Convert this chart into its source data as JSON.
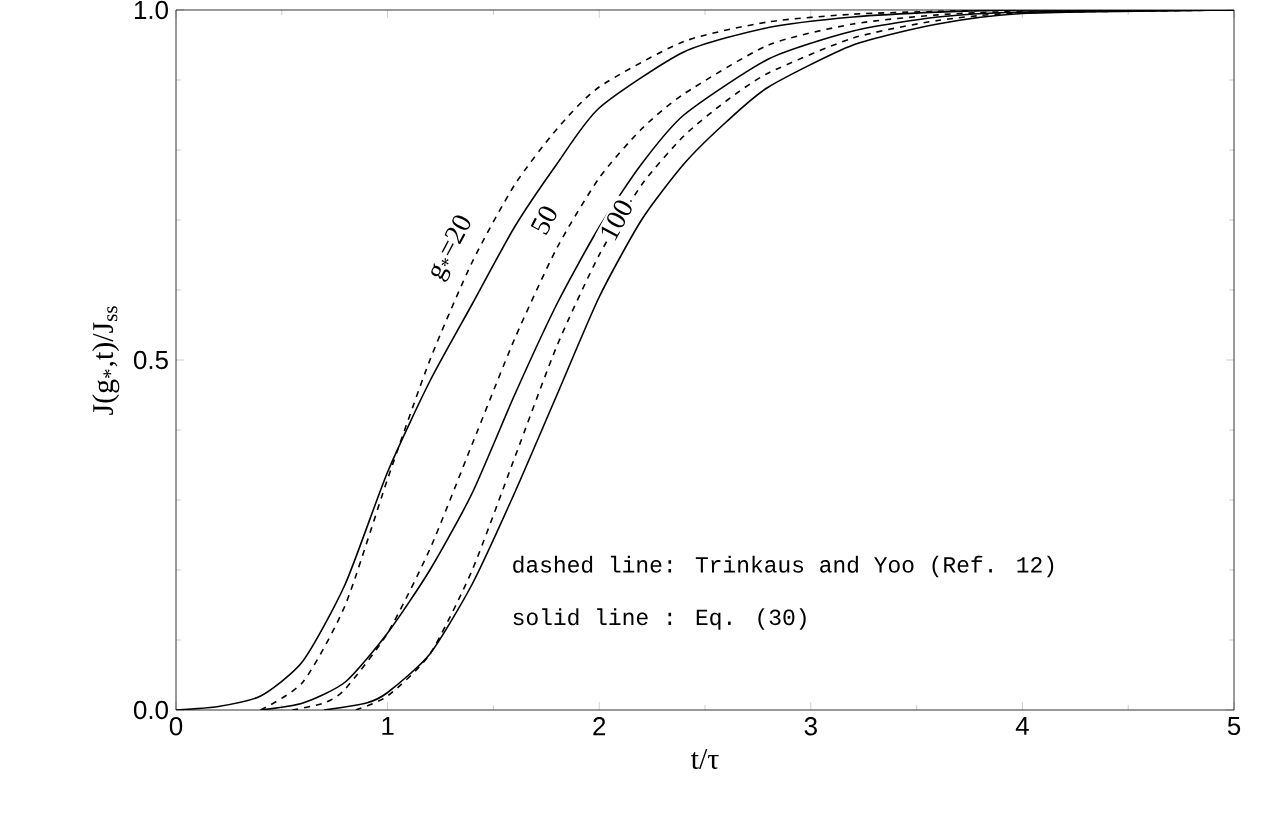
{
  "chart_data": {
    "type": "line",
    "xlabel": "t/τ",
    "ylabel": "J(g$_{*}$,t)/J$_{ss}$",
    "xlim": [
      0,
      5
    ],
    "ylim": [
      0,
      1
    ],
    "xticks": [
      0,
      1,
      2,
      3,
      4,
      5
    ],
    "yticks": [
      {
        "value": 0,
        "label": "0.0"
      },
      0.5,
      {
        "value": 1,
        "label": "1.0"
      }
    ],
    "marker": "none",
    "series": [
      {
        "color": "#000000",
        "line_style": "solid",
        "x": [
          0,
          0.2,
          0.4,
          0.6,
          0.8,
          1.0,
          1.2,
          1.4,
          1.6,
          1.8,
          2.0,
          2.4,
          2.8,
          3.2,
          3.6,
          4.0,
          5.0
        ],
        "values": [
          0,
          0.005,
          0.02,
          0.07,
          0.18,
          0.34,
          0.47,
          0.58,
          0.69,
          0.78,
          0.86,
          0.94,
          0.975,
          0.99,
          0.997,
          1.0,
          1.0
        ]
      },
      {
        "color": "#000000",
        "line_style": "dashed",
        "x": [
          0.4,
          0.6,
          0.8,
          1.0,
          1.2,
          1.4,
          1.6,
          1.8,
          2.0,
          2.4,
          2.8,
          3.2,
          3.6,
          4.0,
          5.0
        ],
        "values": [
          0,
          0.04,
          0.15,
          0.33,
          0.5,
          0.64,
          0.75,
          0.83,
          0.89,
          0.955,
          0.983,
          0.994,
          0.998,
          1.0,
          1.0
        ]
      },
      {
        "color": "#000000",
        "line_style": "solid",
        "x": [
          0.4,
          0.6,
          0.8,
          1.0,
          1.2,
          1.4,
          1.6,
          1.8,
          2.0,
          2.2,
          2.4,
          2.8,
          3.2,
          3.6,
          4.0,
          5.0
        ],
        "values": [
          0,
          0.01,
          0.04,
          0.11,
          0.2,
          0.31,
          0.45,
          0.58,
          0.69,
          0.78,
          0.85,
          0.93,
          0.97,
          0.99,
          0.997,
          1.0
        ]
      },
      {
        "color": "#000000",
        "line_style": "dashed",
        "x": [
          0.55,
          0.7,
          0.8,
          1.0,
          1.2,
          1.4,
          1.6,
          1.8,
          2.0,
          2.2,
          2.4,
          2.8,
          3.2,
          3.6,
          4.0,
          5.0
        ],
        "values": [
          0,
          0.01,
          0.03,
          0.11,
          0.23,
          0.38,
          0.53,
          0.66,
          0.76,
          0.83,
          0.88,
          0.95,
          0.98,
          0.993,
          0.998,
          1.0
        ]
      },
      {
        "color": "#000000",
        "line_style": "solid",
        "x": [
          0.7,
          0.9,
          1.0,
          1.2,
          1.4,
          1.6,
          1.8,
          2.0,
          2.2,
          2.4,
          2.6,
          2.8,
          3.2,
          3.6,
          4.0,
          5.0
        ],
        "values": [
          0,
          0.01,
          0.025,
          0.08,
          0.18,
          0.31,
          0.45,
          0.59,
          0.7,
          0.78,
          0.84,
          0.89,
          0.95,
          0.98,
          0.995,
          1.0
        ]
      },
      {
        "color": "#000000",
        "line_style": "dashed",
        "x": [
          0.85,
          1.0,
          1.2,
          1.4,
          1.6,
          1.8,
          2.0,
          2.2,
          2.4,
          2.6,
          2.8,
          3.2,
          3.6,
          4.0,
          5.0
        ],
        "values": [
          0,
          0.02,
          0.08,
          0.2,
          0.36,
          0.52,
          0.65,
          0.75,
          0.82,
          0.87,
          0.91,
          0.96,
          0.985,
          0.996,
          1.0
        ]
      }
    ],
    "annotations": [
      {
        "text": "g$_{*}$=20",
        "x": 1.3,
        "y": 0.66
      },
      {
        "text": "50",
        "x": 1.74,
        "y": 0.7
      },
      {
        "text": "100",
        "x": 2.08,
        "y": 0.7
      },
      "dashed line: Trinkaus and Yoo (Ref. 12)",
      "solid line : Eq. (30)"
    ]
  }
}
